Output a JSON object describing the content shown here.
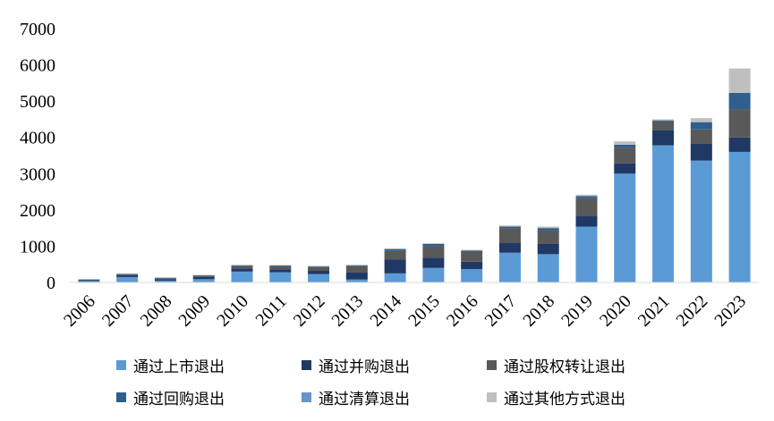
{
  "chart_data": {
    "type": "bar",
    "stacked": true,
    "categories": [
      "2006",
      "2007",
      "2008",
      "2009",
      "2010",
      "2011",
      "2012",
      "2013",
      "2014",
      "2015",
      "2016",
      "2017",
      "2018",
      "2019",
      "2020",
      "2021",
      "2022",
      "2023"
    ],
    "ylim": [
      0,
      7000
    ],
    "yticks": [
      "0",
      "1000",
      "2000",
      "3000",
      "4000",
      "5000",
      "6000",
      "7000"
    ],
    "grid": false,
    "legend_position": "bottom",
    "series": [
      {
        "name": "通过上市退出",
        "color": "#5b9bd5",
        "values": [
          40,
          150,
          50,
          90,
          300,
          280,
          230,
          80,
          250,
          400,
          370,
          820,
          780,
          1540,
          3000,
          3780,
          3360,
          3600
        ]
      },
      {
        "name": "通过并购退出",
        "color": "#203864",
        "values": [
          30,
          50,
          40,
          60,
          80,
          80,
          90,
          200,
          380,
          280,
          200,
          280,
          280,
          300,
          280,
          420,
          460,
          400
        ]
      },
      {
        "name": "通过股权转让退出",
        "color": "#595959",
        "values": [
          10,
          30,
          30,
          40,
          70,
          90,
          100,
          170,
          240,
          320,
          280,
          400,
          380,
          480,
          440,
          240,
          400,
          780
        ]
      },
      {
        "name": "通过回购退出",
        "color": "#2e5f8e",
        "values": [
          5,
          10,
          10,
          10,
          20,
          20,
          20,
          20,
          50,
          60,
          30,
          40,
          60,
          60,
          80,
          30,
          200,
          450
        ]
      },
      {
        "name": "通过清算退出",
        "color": "#6a93c9",
        "values": [
          0,
          0,
          0,
          0,
          0,
          0,
          0,
          0,
          0,
          0,
          0,
          0,
          0,
          0,
          0,
          0,
          0,
          0
        ]
      },
      {
        "name": "通过其他方式退出",
        "color": "#bfbfbf",
        "values": [
          5,
          10,
          10,
          10,
          20,
          10,
          20,
          20,
          20,
          20,
          20,
          30,
          40,
          40,
          90,
          30,
          110,
          670
        ]
      }
    ]
  }
}
